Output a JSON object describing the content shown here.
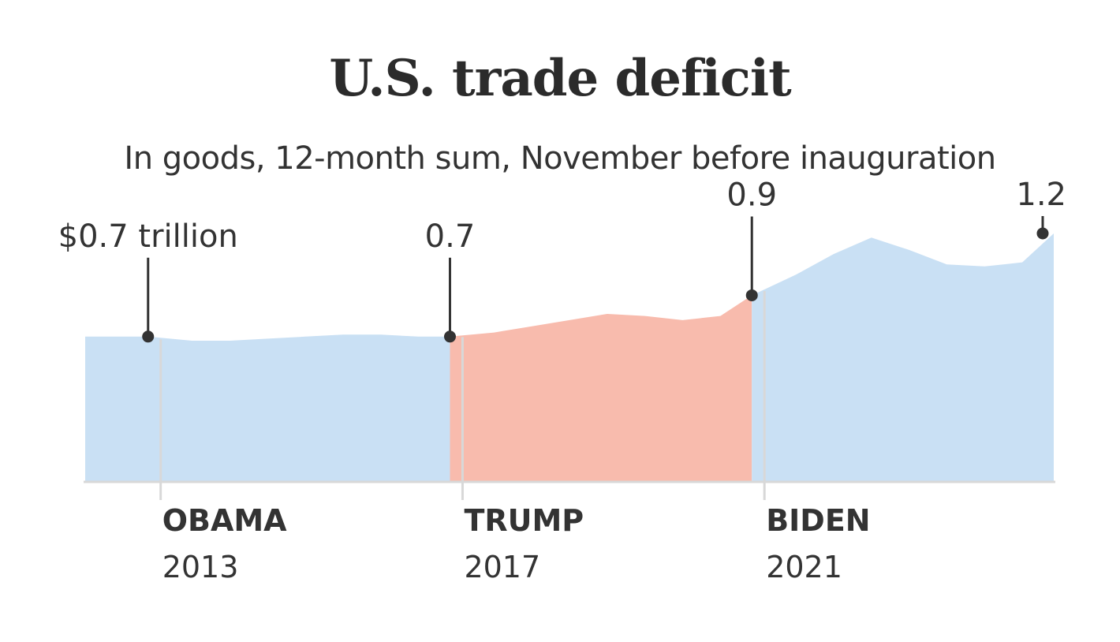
{
  "chart_data": {
    "type": "area",
    "title": "U.S. trade deficit",
    "subtitle": "In goods, 12-month sum, November before inauguration",
    "unit": "trillion",
    "x": [
      "2012-01",
      "2012-06",
      "2012-11",
      "2013-06",
      "2013-12",
      "2014-06",
      "2014-12",
      "2015-06",
      "2015-12",
      "2016-06",
      "2016-11",
      "2017-06",
      "2017-12",
      "2018-06",
      "2018-12",
      "2019-06",
      "2019-12",
      "2020-06",
      "2020-11",
      "2021-06",
      "2021-12",
      "2022-06",
      "2022-12",
      "2023-06",
      "2023-12",
      "2024-06",
      "2024-11"
    ],
    "values": [
      0.7,
      0.7,
      0.7,
      0.68,
      0.68,
      0.69,
      0.7,
      0.71,
      0.71,
      0.7,
      0.7,
      0.72,
      0.75,
      0.78,
      0.81,
      0.8,
      0.78,
      0.8,
      0.9,
      1.0,
      1.1,
      1.18,
      1.12,
      1.05,
      1.04,
      1.06,
      1.2
    ],
    "ylim": [
      0,
      1.6
    ],
    "series": [
      {
        "name": "OBAMA",
        "color": "#c9e0f4",
        "start": "2012-01",
        "end": "2016-11"
      },
      {
        "name": "TRUMP",
        "color": "#f8bbad",
        "start": "2016-11",
        "end": "2020-11"
      },
      {
        "name": "BIDEN",
        "color": "#c9e0f4",
        "start": "2020-11",
        "end": "2024-11"
      }
    ],
    "callouts": [
      {
        "x": "2012-11",
        "value": 0.7,
        "label": "$0.7 trillion"
      },
      {
        "x": "2016-11",
        "value": 0.7,
        "label": "0.7"
      },
      {
        "x": "2020-11",
        "value": 0.9,
        "label": "0.9"
      },
      {
        "x": "2024-11",
        "value": 1.2,
        "label": "1.2"
      }
    ],
    "inaugurations": [
      {
        "x": "2013-01",
        "name": "OBAMA",
        "year": "2013"
      },
      {
        "x": "2017-01",
        "name": "TRUMP",
        "year": "2017"
      },
      {
        "x": "2021-01",
        "name": "BIDEN",
        "year": "2021"
      }
    ],
    "colors": {
      "text": "#333333",
      "axis": "#d8d8d8",
      "dem": "#c9e0f4",
      "rep": "#f8bbad",
      "marker": "#333333"
    }
  }
}
